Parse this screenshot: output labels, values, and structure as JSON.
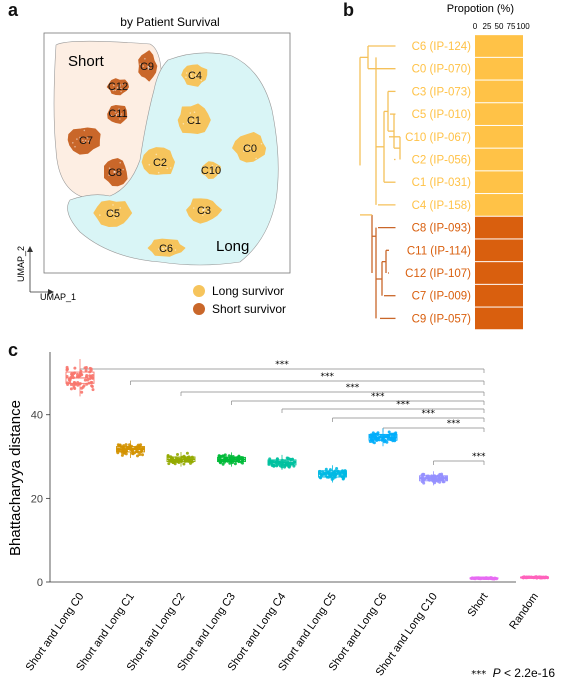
{
  "panel_a": {
    "letter": "a",
    "title": "by Patient Survival",
    "group_short": "Short",
    "group_long": "Long",
    "axis_x": "UMAP_1",
    "axis_y": "UMAP_2",
    "clusters": [
      {
        "id": "C0",
        "group": "long"
      },
      {
        "id": "C1",
        "group": "long"
      },
      {
        "id": "C2",
        "group": "long"
      },
      {
        "id": "C3",
        "group": "long"
      },
      {
        "id": "C4",
        "group": "long"
      },
      {
        "id": "C5",
        "group": "long"
      },
      {
        "id": "C6",
        "group": "long"
      },
      {
        "id": "C10",
        "group": "long"
      },
      {
        "id": "C7",
        "group": "short"
      },
      {
        "id": "C8",
        "group": "short"
      },
      {
        "id": "C9",
        "group": "short"
      },
      {
        "id": "C11",
        "group": "short"
      },
      {
        "id": "C12",
        "group": "short"
      }
    ],
    "legend": [
      {
        "label": "Long survivor",
        "color": "#F6C45C"
      },
      {
        "label": "Short survivor",
        "color": "#C9672A"
      }
    ]
  },
  "panel_b": {
    "letter": "b",
    "axis_title": "Propotion (%)",
    "ticks": [
      "0",
      "25",
      "50",
      "75",
      "100"
    ],
    "rows": [
      {
        "label": "C6 (IP-124)",
        "group": "long"
      },
      {
        "label": "C0 (IP-070)",
        "group": "long"
      },
      {
        "label": "C3 (IP-073)",
        "group": "long"
      },
      {
        "label": "C5 (IP-010)",
        "group": "long"
      },
      {
        "label": "C10 (IP-067)",
        "group": "long"
      },
      {
        "label": "C2 (IP-056)",
        "group": "long"
      },
      {
        "label": "C1 (IP-031)",
        "group": "long"
      },
      {
        "label": "C4 (IP-158)",
        "group": "long"
      },
      {
        "label": "C8 (IP-093)",
        "group": "short"
      },
      {
        "label": "C11 (IP-114)",
        "group": "short"
      },
      {
        "label": "C12 (IP-107)",
        "group": "short"
      },
      {
        "label": "C7 (IP-009)",
        "group": "short"
      },
      {
        "label": "C9 (IP-057)",
        "group": "short"
      }
    ],
    "colors": {
      "long": "#FFC247",
      "short": "#D95F0E",
      "tree_long": "#F5C15A",
      "tree_short": "#C9672A"
    }
  },
  "panel_c": {
    "letter": "c",
    "footnote_stars": "***",
    "footnote_p": "P",
    "footnote_rest": " < 2.2e-16",
    "sig_label": "***"
  },
  "chart_data": {
    "type": "boxplot",
    "ylabel": "Bhattacharyya distance",
    "ylim": [
      0,
      55
    ],
    "yticks": [
      0,
      20,
      40
    ],
    "categories": [
      "Short and Long C0",
      "Short and Long C1",
      "Short and Long C2",
      "Short and Long C3",
      "Short and Long C4",
      "Short and Long C5",
      "Short and Long C6",
      "Short and Long C10",
      "Short",
      "Random"
    ],
    "series": [
      {
        "median": 48.8,
        "q1": 47.5,
        "q3": 50.2,
        "spread": 2.6,
        "color": "#F8766D"
      },
      {
        "median": 31.7,
        "q1": 31.1,
        "q3": 32.4,
        "spread": 1.2,
        "color": "#D39200"
      },
      {
        "median": 29.3,
        "q1": 28.8,
        "q3": 29.9,
        "spread": 1.0,
        "color": "#93AA00"
      },
      {
        "median": 29.3,
        "q1": 28.8,
        "q3": 29.8,
        "spread": 1.0,
        "color": "#00BA38"
      },
      {
        "median": 28.6,
        "q1": 28.0,
        "q3": 29.2,
        "spread": 1.0,
        "color": "#00C19F"
      },
      {
        "median": 25.8,
        "q1": 25.1,
        "q3": 26.6,
        "spread": 1.1,
        "color": "#00B9E3"
      },
      {
        "median": 34.6,
        "q1": 33.9,
        "q3": 35.3,
        "spread": 1.2,
        "color": "#00ADFA"
      },
      {
        "median": 24.8,
        "q1": 24.2,
        "q3": 25.4,
        "spread": 0.9,
        "color": "#9590FF"
      },
      {
        "median": 0.9,
        "q1": 0.8,
        "q3": 1.0,
        "spread": 0.12,
        "color": "#E76BF3"
      },
      {
        "median": 1.1,
        "q1": 1.0,
        "q3": 1.2,
        "spread": 0.12,
        "color": "#FF62BC"
      }
    ],
    "comparisons": [
      {
        "from": 0,
        "to": 8,
        "label": "***"
      },
      {
        "from": 1,
        "to": 8,
        "label": "***"
      },
      {
        "from": 2,
        "to": 8,
        "label": "***"
      },
      {
        "from": 3,
        "to": 8,
        "label": "***"
      },
      {
        "from": 4,
        "to": 8,
        "label": "***"
      },
      {
        "from": 5,
        "to": 8,
        "label": "***"
      },
      {
        "from": 6,
        "to": 8,
        "label": "***"
      },
      {
        "from": 7,
        "to": 8,
        "label": "***"
      }
    ]
  }
}
